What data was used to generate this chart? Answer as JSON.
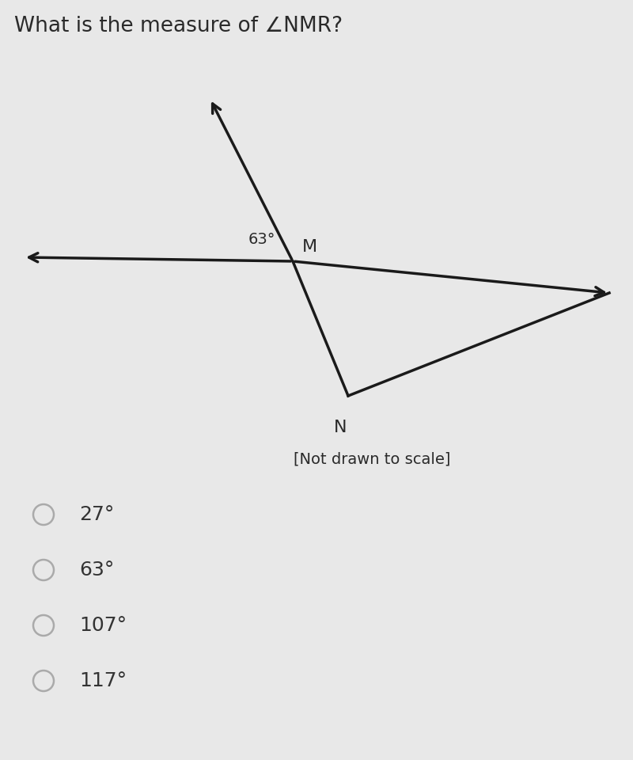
{
  "title": "What is the measure of ∠NMR?",
  "title_fontsize": 19,
  "background_color": "#e8e8e8",
  "angle_label": "63°",
  "note": "[Not drawn to scale]",
  "choices": [
    "27°",
    "63°",
    "107°",
    "117°"
  ],
  "line_color": "#1a1a1a",
  "text_color": "#2a2a2a",
  "choice_text_color": "#333333"
}
